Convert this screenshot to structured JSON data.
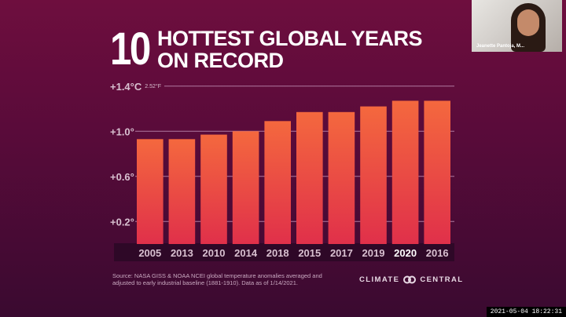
{
  "title": {
    "number": "10",
    "line1": "HOTTEST GLOBAL YEARS",
    "line2": "ON RECORD"
  },
  "chart_data": {
    "type": "bar",
    "title": "10 Hottest Global Years on Record",
    "categories": [
      "2005",
      "2013",
      "2010",
      "2014",
      "2018",
      "2015",
      "2017",
      "2019",
      "2020",
      "2016"
    ],
    "values": [
      0.93,
      0.93,
      0.97,
      1.0,
      1.09,
      1.17,
      1.17,
      1.22,
      1.27,
      1.27
    ],
    "highlight": "2020",
    "yticks": [
      {
        "v": 1.4,
        "label": "+1.4°C",
        "extra": "2.52°F"
      },
      {
        "v": 1.0,
        "label": "+1.0°"
      },
      {
        "v": 0.6,
        "label": "+0.6°"
      },
      {
        "v": 0.2,
        "label": "+0.2°"
      }
    ],
    "ylim": [
      0,
      1.4
    ],
    "ylabel": "",
    "xlabel": ""
  },
  "source": "Source: NASA GISS & NOAA NCEI global temperature anomalies averaged and adjusted to early industrial baseline (1881-1910). Data as of 1/14/2021.",
  "logo": {
    "left": "CLIMATE",
    "right": "CENTRAL"
  },
  "video": {
    "name": "Jeanette Pantoja, M..."
  },
  "timestamp": "2021-05-04 18:22:31",
  "colors": {
    "bar_top": "#f4683e",
    "bar_bottom": "#e0304a"
  }
}
